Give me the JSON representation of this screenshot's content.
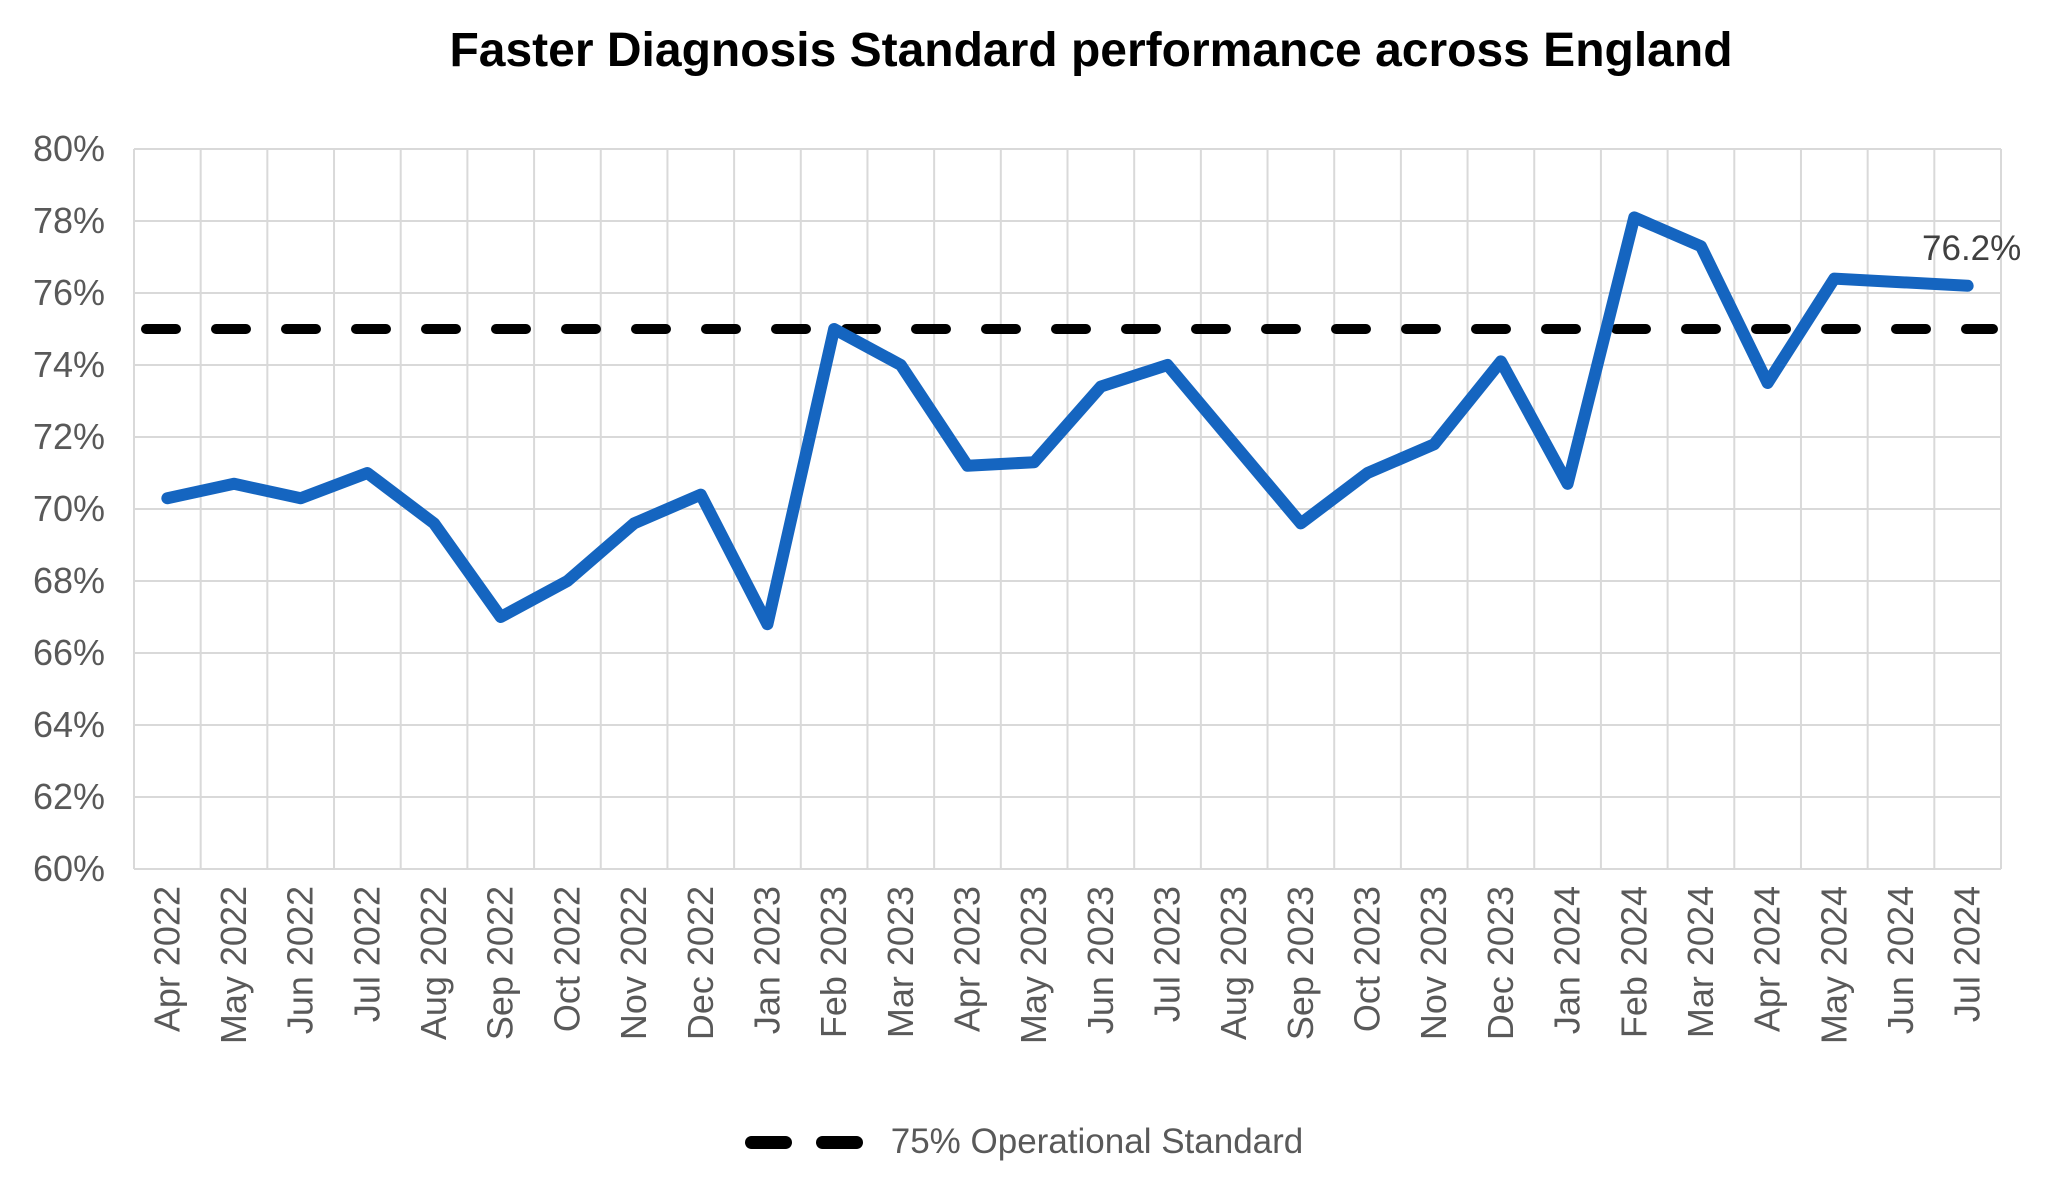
{
  "colors": {
    "series_line": "#1565C0",
    "reference_line": "#000000",
    "gridline": "#D9D9D9",
    "axis_text": "#595959",
    "title_text": "#000000",
    "end_label_text": "#404040"
  },
  "chart_data": {
    "type": "line",
    "title": "Faster Diagnosis Standard performance across England",
    "categories": [
      "Apr 2022",
      "May 2022",
      "Jun 2022",
      "Jul 2022",
      "Aug 2022",
      "Sep 2022",
      "Oct 2022",
      "Nov 2022",
      "Dec 2022",
      "Jan 2023",
      "Feb 2023",
      "Mar 2023",
      "Apr 2023",
      "May 2023",
      "Jun 2023",
      "Jul 2023",
      "Aug 2023",
      "Sep 2023",
      "Oct 2023",
      "Nov 2023",
      "Dec 2023",
      "Jan 2024",
      "Feb 2024",
      "Mar 2024",
      "Apr 2024",
      "May 2024",
      "Jun 2024",
      "Jul 2024"
    ],
    "series": [
      {
        "name": "Faster Diagnosis Standard performance",
        "values": [
          70.3,
          70.7,
          70.3,
          71.0,
          69.6,
          67.0,
          68.0,
          69.6,
          70.4,
          66.8,
          75.0,
          74.0,
          71.2,
          71.3,
          73.4,
          74.0,
          71.8,
          69.6,
          71.0,
          71.8,
          74.1,
          70.7,
          78.1,
          77.3,
          73.5,
          76.4,
          76.3,
          76.2
        ]
      }
    ],
    "reference_line": {
      "label": "75% Operational Standard",
      "value": 75
    },
    "end_label": "76.2%",
    "xlabel": "",
    "ylabel": "",
    "ylim": [
      60,
      80
    ],
    "y_ticks": {
      "values": [
        80,
        78,
        76,
        74,
        72,
        70,
        68,
        66,
        64,
        62,
        60
      ],
      "labels": [
        "80%",
        "78%",
        "76%",
        "74%",
        "72%",
        "70%",
        "68%",
        "66%",
        "64%",
        "62%",
        "60%"
      ]
    },
    "grid": true,
    "legend_position": "bottom"
  }
}
